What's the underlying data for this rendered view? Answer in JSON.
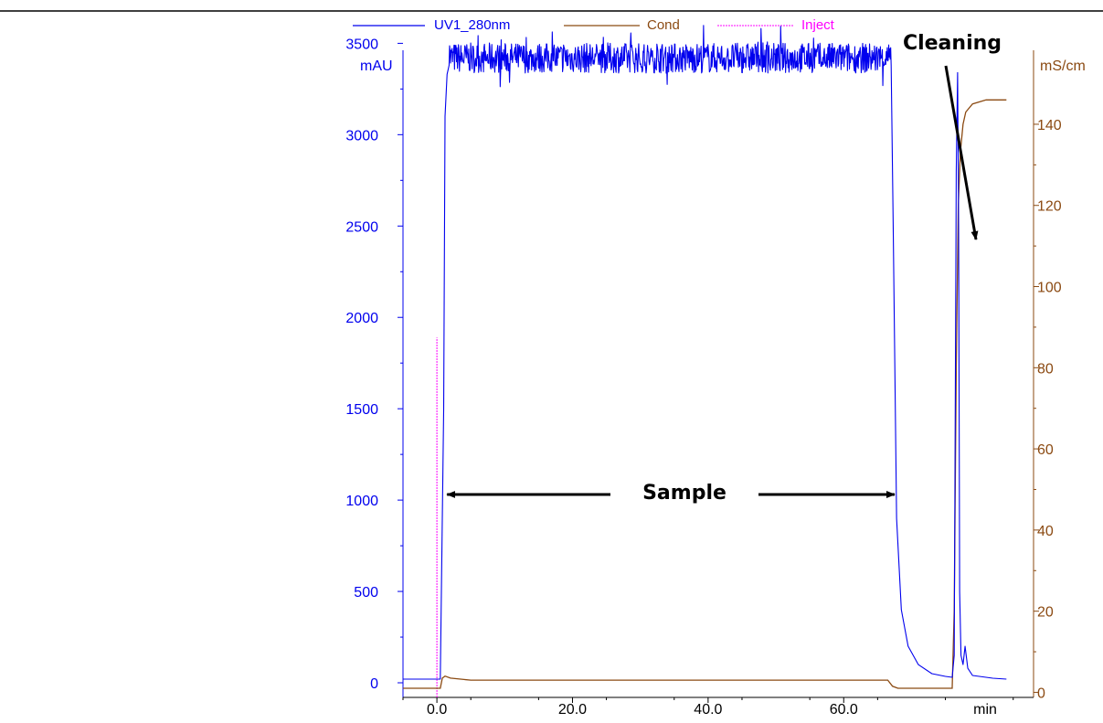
{
  "colors": {
    "uv": "#0000ee",
    "cond": "#8b4a12",
    "inject": "#ff00ff",
    "text": "#000000",
    "axis": "#000000"
  },
  "chart_data": {
    "type": "line",
    "x_ticks": [
      "0.0",
      "20.0",
      "40.0",
      "60.0"
    ],
    "x_tick_values": [
      0,
      20,
      40,
      60
    ],
    "x_unit_label": "min",
    "xlim": [
      -5,
      88
    ],
    "y_left": {
      "label": "mAU",
      "ticks": [
        "0",
        "500",
        "1000",
        "1500",
        "2000",
        "2500",
        "3000",
        "3500"
      ],
      "tick_values": [
        0,
        500,
        1000,
        1500,
        2000,
        2500,
        3000,
        3500
      ],
      "range": [
        -80,
        3450
      ]
    },
    "y_right": {
      "label": "mS/cm",
      "ticks": [
        "0",
        "20",
        "40",
        "60",
        "80",
        "100",
        "120",
        "140"
      ],
      "tick_values": [
        0,
        20,
        40,
        60,
        80,
        100,
        120,
        140
      ],
      "range": [
        -1.25,
        151.25
      ]
    },
    "legend": [
      {
        "name": "UV1_280nm",
        "color_key": "uv"
      },
      {
        "name": "Cond",
        "color_key": "cond"
      },
      {
        "name": "Inject",
        "color_key": "inject"
      }
    ],
    "series": [
      {
        "name": "UV1_280nm",
        "axis": "left",
        "noise_band": {
          "x_start": 1.8,
          "x_end": 67.0,
          "mean": 3420,
          "amplitude": 110
        },
        "x": [
          -5,
          0.5,
          1.0,
          1.2,
          1.5,
          1.8,
          67.0,
          67.3,
          67.8,
          68.5,
          69.5,
          71.0,
          73.0,
          75.0,
          76.0,
          76.3,
          76.6,
          76.8,
          76.95,
          77.1,
          77.3,
          77.6,
          77.9,
          78.3,
          79.0,
          82.0,
          84.0
        ],
        "y": [
          20,
          20,
          1500,
          3100,
          3330,
          3380,
          3380,
          2500,
          900,
          400,
          200,
          100,
          50,
          35,
          30,
          150,
          2800,
          3340,
          2500,
          500,
          150,
          100,
          200,
          80,
          40,
          25,
          20
        ]
      },
      {
        "name": "Cond",
        "axis": "right",
        "x": [
          -5,
          0.5,
          0.8,
          1.2,
          2.0,
          5.0,
          66.5,
          67.2,
          68.0,
          76.0,
          76.3,
          76.6,
          76.9,
          77.2,
          77.6,
          78.0,
          79.0,
          81.0,
          84.0
        ],
        "y": [
          1.0,
          1.0,
          3.5,
          4.0,
          3.5,
          3.0,
          3.0,
          1.5,
          1.0,
          1.0,
          20,
          80,
          120,
          133,
          140,
          143,
          145,
          146,
          146
        ]
      },
      {
        "name": "Inject",
        "axis": "left",
        "x": [
          0,
          0
        ],
        "y": [
          -80,
          1890
        ]
      }
    ],
    "annotations": [
      {
        "text": "Sample",
        "arrows": [
          {
            "from_x": 16,
            "to_x": 1.5,
            "y": 1180
          },
          {
            "from_x": 50,
            "to_x": 67.5,
            "y": 1180
          }
        ]
      },
      {
        "text": "Cleaning",
        "arrow": {
          "from_x": 73.5,
          "from_y": 3880,
          "to_x": 76.6,
          "to_y": 2740
        }
      }
    ]
  }
}
